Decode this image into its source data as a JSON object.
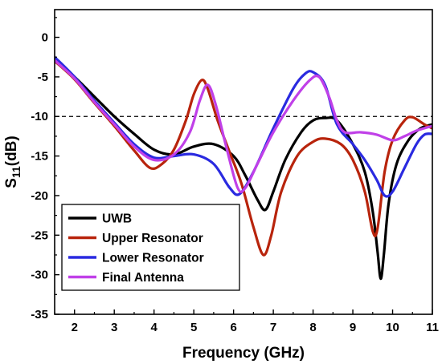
{
  "chart_data": {
    "type": "line",
    "title": "",
    "xlabel": "Frequency (GHz)",
    "ylabel_main": "S",
    "ylabel_sub": "11",
    "ylabel_unit": "(dB)",
    "xlim": [
      1.5,
      11
    ],
    "ylim": [
      -35,
      3.5
    ],
    "xticks": [
      2,
      3,
      4,
      5,
      6,
      7,
      8,
      9,
      10,
      11
    ],
    "yticks": [
      0,
      -5,
      -10,
      -15,
      -20,
      -25,
      -30,
      -35
    ],
    "reference_line": {
      "y": -10,
      "style": "dashed",
      "color": "#000000"
    },
    "grid": false,
    "legend_position": "bottom-left",
    "series": [
      {
        "name": "UWB",
        "color": "#000000",
        "points": [
          [
            1.5,
            -2.8
          ],
          [
            2,
            -5
          ],
          [
            2.5,
            -7.5
          ],
          [
            3,
            -10
          ],
          [
            3.5,
            -12.2
          ],
          [
            4,
            -14.2
          ],
          [
            4.5,
            -14.8
          ],
          [
            5,
            -13.8
          ],
          [
            5.5,
            -13.5
          ],
          [
            6,
            -15
          ],
          [
            6.3,
            -17.5
          ],
          [
            6.6,
            -20.5
          ],
          [
            6.8,
            -21.8
          ],
          [
            7.0,
            -19.5
          ],
          [
            7.3,
            -15.5
          ],
          [
            7.7,
            -12.0
          ],
          [
            8.0,
            -10.5
          ],
          [
            8.3,
            -10.2
          ],
          [
            8.6,
            -10.5
          ],
          [
            9.0,
            -13.5
          ],
          [
            9.3,
            -17.0
          ],
          [
            9.5,
            -22.0
          ],
          [
            9.62,
            -27.0
          ],
          [
            9.7,
            -30.5
          ],
          [
            9.78,
            -27.5
          ],
          [
            9.9,
            -21.0
          ],
          [
            10.1,
            -16.0
          ],
          [
            10.4,
            -13.0
          ],
          [
            10.7,
            -11.5
          ],
          [
            11,
            -11
          ]
        ]
      },
      {
        "name": "Upper Resonator",
        "color": "#b8240c",
        "points": [
          [
            1.5,
            -3
          ],
          [
            2,
            -5.3
          ],
          [
            2.5,
            -8.3
          ],
          [
            3,
            -11.2
          ],
          [
            3.5,
            -14.3
          ],
          [
            3.9,
            -16.5
          ],
          [
            4.2,
            -16.0
          ],
          [
            4.5,
            -14.2
          ],
          [
            4.8,
            -10.5
          ],
          [
            5.0,
            -7.2
          ],
          [
            5.2,
            -5.4
          ],
          [
            5.35,
            -6.5
          ],
          [
            5.6,
            -10.5
          ],
          [
            5.9,
            -14.5
          ],
          [
            6.2,
            -18.5
          ],
          [
            6.5,
            -24.0
          ],
          [
            6.75,
            -27.5
          ],
          [
            6.95,
            -25.0
          ],
          [
            7.2,
            -19.5
          ],
          [
            7.6,
            -15.0
          ],
          [
            8.0,
            -13.2
          ],
          [
            8.3,
            -12.8
          ],
          [
            8.7,
            -13.5
          ],
          [
            9.0,
            -15.5
          ],
          [
            9.3,
            -19.5
          ],
          [
            9.5,
            -24.5
          ],
          [
            9.62,
            -24.2
          ],
          [
            9.8,
            -17.0
          ],
          [
            10.0,
            -13.0
          ],
          [
            10.3,
            -10.5
          ],
          [
            10.5,
            -10.1
          ],
          [
            10.8,
            -11
          ],
          [
            11,
            -11.5
          ]
        ]
      },
      {
        "name": "Lower Resonator",
        "color": "#2a2ae0",
        "points": [
          [
            1.5,
            -2.5
          ],
          [
            2,
            -5
          ],
          [
            2.5,
            -8
          ],
          [
            3,
            -10.8
          ],
          [
            3.5,
            -13.5
          ],
          [
            4.0,
            -15.2
          ],
          [
            4.5,
            -15.0
          ],
          [
            5.0,
            -14.8
          ],
          [
            5.5,
            -16.0
          ],
          [
            5.9,
            -19.0
          ],
          [
            6.15,
            -19.8
          ],
          [
            6.5,
            -17.0
          ],
          [
            7.0,
            -11.5
          ],
          [
            7.5,
            -6.5
          ],
          [
            7.8,
            -4.6
          ],
          [
            8.0,
            -4.4
          ],
          [
            8.3,
            -6.0
          ],
          [
            8.6,
            -11.0
          ],
          [
            9.0,
            -13.5
          ],
          [
            9.3,
            -15.5
          ],
          [
            9.6,
            -18.0
          ],
          [
            9.8,
            -20.0
          ],
          [
            10.0,
            -19.5
          ],
          [
            10.3,
            -16.5
          ],
          [
            10.6,
            -13.5
          ],
          [
            10.8,
            -12.3
          ],
          [
            11,
            -12.2
          ]
        ]
      },
      {
        "name": "Final Antenna",
        "color": "#c040e8",
        "points": [
          [
            1.5,
            -2.9
          ],
          [
            2,
            -5.2
          ],
          [
            2.5,
            -8.2
          ],
          [
            3,
            -11
          ],
          [
            3.5,
            -13.8
          ],
          [
            4.0,
            -15.5
          ],
          [
            4.5,
            -14.8
          ],
          [
            4.9,
            -12.0
          ],
          [
            5.15,
            -8.0
          ],
          [
            5.35,
            -6.0
          ],
          [
            5.55,
            -8.5
          ],
          [
            5.8,
            -13.5
          ],
          [
            6.1,
            -19.0
          ],
          [
            6.3,
            -19.0
          ],
          [
            6.6,
            -16.0
          ],
          [
            7.0,
            -12.0
          ],
          [
            7.5,
            -8.0
          ],
          [
            7.9,
            -5.5
          ],
          [
            8.15,
            -5.0
          ],
          [
            8.4,
            -7.5
          ],
          [
            8.6,
            -10.5
          ],
          [
            8.8,
            -12.0
          ],
          [
            9.2,
            -12.0
          ],
          [
            9.6,
            -12.3
          ],
          [
            10.0,
            -13.0
          ],
          [
            10.3,
            -12.5
          ],
          [
            10.6,
            -11.8
          ],
          [
            11,
            -11.2
          ]
        ]
      }
    ]
  }
}
